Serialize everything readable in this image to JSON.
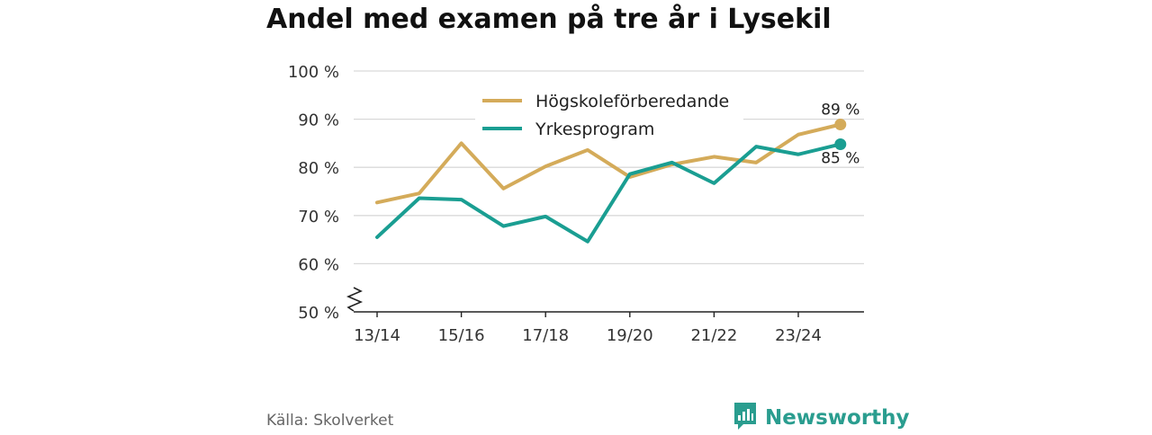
{
  "title": "Andel med examen på tre år i Lysekil",
  "source": "Källa: Skolverket",
  "brand": {
    "name": "Newsworthy",
    "color": "#2a9d8f",
    "icon": "newsworthy-logo-icon"
  },
  "chart_data": {
    "type": "line",
    "title": "Andel med examen på tre år i Lysekil",
    "x": [
      "13/14",
      "14/15",
      "15/16",
      "16/17",
      "17/18",
      "18/19",
      "19/20",
      "20/21",
      "21/22",
      "22/23",
      "23/24",
      "24/25"
    ],
    "x_tick_labels": [
      "13/14",
      "15/16",
      "17/18",
      "19/20",
      "21/22",
      "23/24"
    ],
    "y_ticks": [
      {
        "value": 50,
        "label": "50 %"
      },
      {
        "value": 60,
        "label": "60 %"
      },
      {
        "value": 70,
        "label": "70 %"
      },
      {
        "value": 80,
        "label": "80 %"
      },
      {
        "value": 90,
        "label": "90 %"
      },
      {
        "value": 100,
        "label": "100 %"
      }
    ],
    "ylim": [
      50,
      100
    ],
    "y_axis_break": true,
    "grid": true,
    "legend": "top-center",
    "series": [
      {
        "name": "Högskoleförberedande",
        "color": "#d4ab5a",
        "values": [
          72.7,
          74.6,
          85.0,
          75.6,
          80.2,
          83.6,
          78.0,
          80.6,
          82.2,
          81.0,
          86.8,
          88.9
        ],
        "end_label": "89 %"
      },
      {
        "name": "Yrkesprogram",
        "color": "#1a9e92",
        "values": [
          65.5,
          73.6,
          73.3,
          67.8,
          69.8,
          64.6,
          78.6,
          81.0,
          76.7,
          84.3,
          82.7,
          84.8
        ],
        "end_label": "85 %"
      }
    ]
  }
}
